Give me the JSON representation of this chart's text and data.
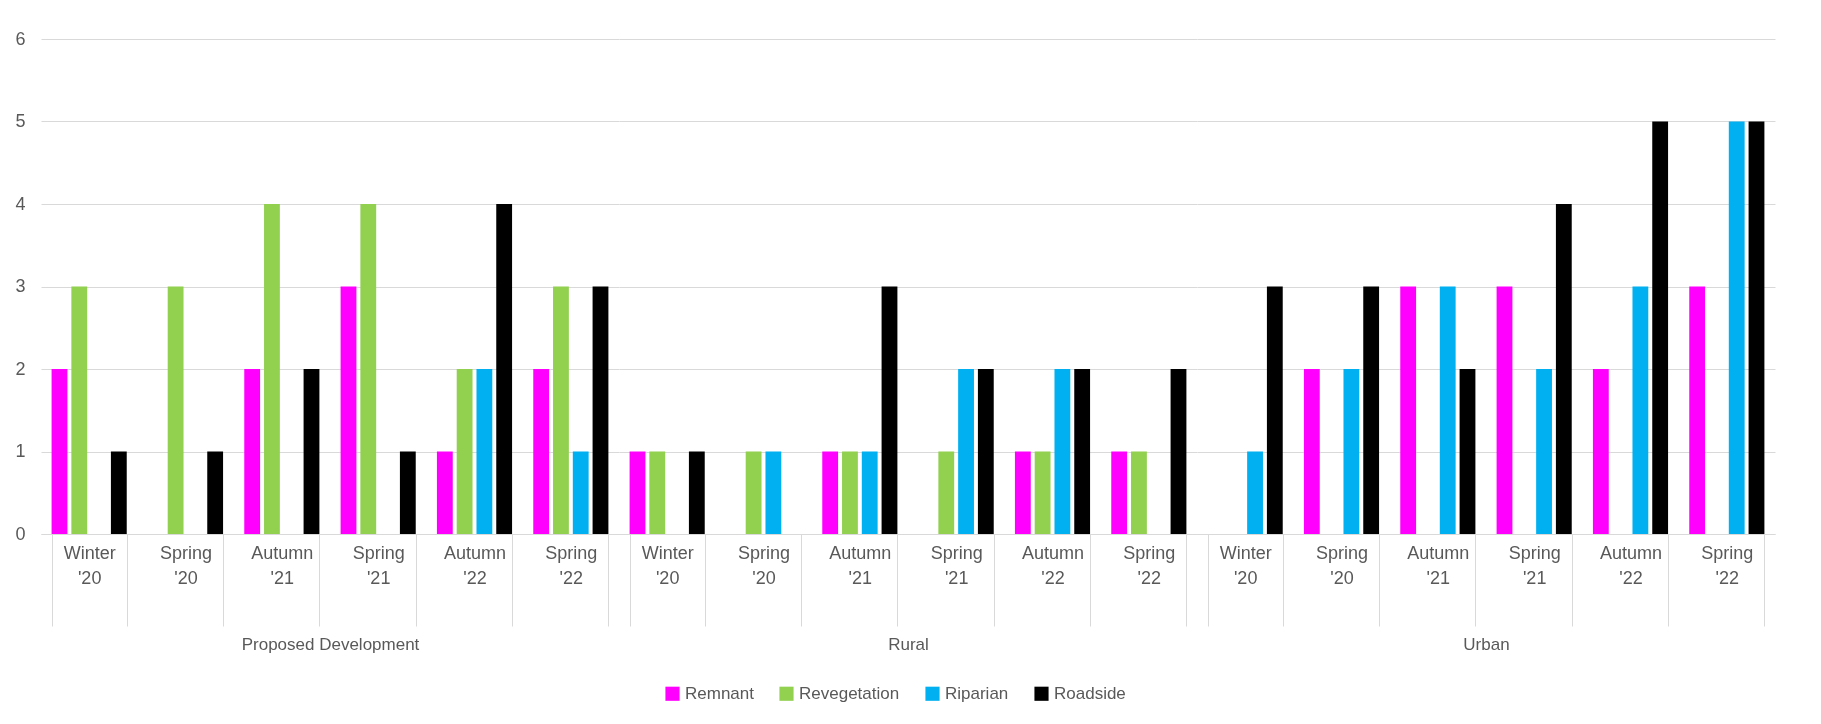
{
  "chart_data": [
    {
      "type": "bar",
      "xlabel": "Proposed Development",
      "categories": [
        "Winter '20",
        "Spring '20",
        "Autumn '21",
        "Spring '21",
        "Autumn '22",
        "Spring '22"
      ],
      "ylim": [
        0,
        6
      ],
      "yticks": [
        0,
        1,
        2,
        3,
        4,
        5,
        6
      ],
      "grid": "y",
      "legend": "bottom",
      "series": [
        {
          "name": "Remnant",
          "color": "#ff00ff",
          "values": [
            2,
            0,
            2,
            3,
            1,
            2
          ]
        },
        {
          "name": "Revegetation",
          "color": "#92d050",
          "values": [
            3,
            3,
            4,
            4,
            2,
            3
          ]
        },
        {
          "name": "Riparian",
          "color": "#00b0f0",
          "values": [
            0,
            0,
            0,
            0,
            2,
            1
          ]
        },
        {
          "name": "Roadside",
          "color": "#000000",
          "values": [
            1,
            1,
            2,
            1,
            4,
            3
          ]
        }
      ]
    },
    {
      "type": "bar",
      "xlabel": "Rural",
      "categories": [
        "Winter '20",
        "Spring '20",
        "Autumn '21",
        "Spring '21",
        "Autumn '22",
        "Spring '22"
      ],
      "ylim": [
        0,
        6
      ],
      "yticks": [
        0,
        1,
        2,
        3,
        4,
        5,
        6
      ],
      "grid": "y",
      "tick_labels": "x",
      "series": [
        {
          "name": "Remnant",
          "color": "#ff00ff",
          "values": [
            1,
            0,
            1,
            0,
            1,
            1
          ]
        },
        {
          "name": "Revegetation",
          "color": "#92d050",
          "values": [
            1,
            1,
            1,
            1,
            1,
            1
          ]
        },
        {
          "name": "Riparian",
          "color": "#00b0f0",
          "values": [
            0,
            1,
            1,
            2,
            2,
            0
          ]
        },
        {
          "name": "Roadside",
          "color": "#000000",
          "values": [
            1,
            0,
            3,
            2,
            2,
            2
          ]
        }
      ]
    },
    {
      "type": "bar",
      "xlabel": "Urban",
      "categories": [
        "Winter '20",
        "Spring '20",
        "Autumn '21",
        "Spring '21",
        "Autumn '22",
        "Spring '22"
      ],
      "ylim": [
        0,
        6
      ],
      "yticks": [
        0,
        1,
        2,
        3,
        4,
        5,
        6
      ],
      "grid": "y",
      "tick_labels": "x",
      "series": [
        {
          "name": "Remnant",
          "color": "#ff00ff",
          "values": [
            0,
            2,
            3,
            3,
            2,
            3
          ]
        },
        {
          "name": "Revegetation",
          "color": "#92d050",
          "values": [
            0,
            0,
            0,
            0,
            0,
            0
          ]
        },
        {
          "name": "Riparian",
          "color": "#00b0f0",
          "values": [
            1,
            2,
            3,
            2,
            3,
            5
          ]
        },
        {
          "name": "Roadside",
          "color": "#000000",
          "values": [
            3,
            3,
            2,
            4,
            5,
            5
          ]
        }
      ]
    }
  ]
}
